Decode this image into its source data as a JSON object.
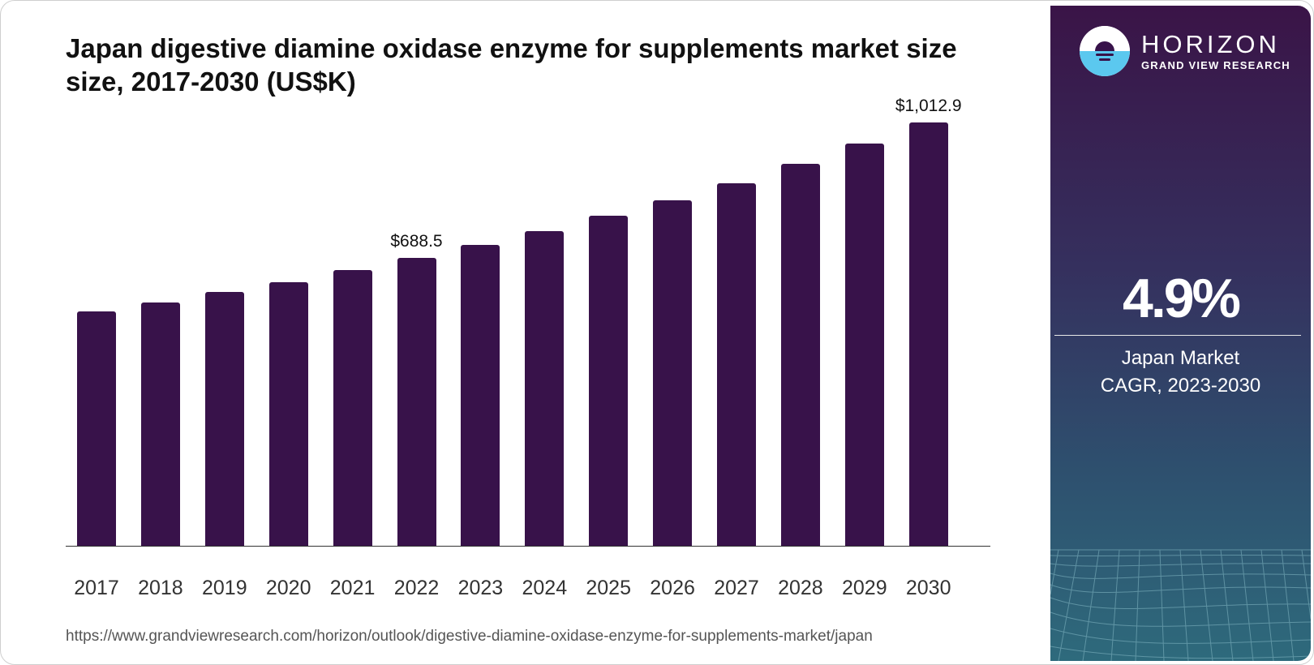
{
  "title": "Japan digestive diamine oxidase enzyme for supplements market size size, 2017-2030 (US$K)",
  "source_url": "https://www.grandviewresearch.com/horizon/outlook/digestive-diamine-oxidase-enzyme-for-supplements-market/japan",
  "brand": {
    "name": "HORIZON",
    "subtitle": "GRAND VIEW RESEARCH",
    "bar_color": "#38124a",
    "logo_top_color": "#ffffff",
    "logo_bottom_color": "#5bc8ef"
  },
  "sidebar": {
    "cagr_value": "4.9%",
    "label_line1": "Japan Market",
    "label_line2": "CAGR, 2023-2030"
  },
  "chart_data": {
    "type": "bar",
    "title": "Japan digestive diamine oxidase enzyme for supplements market size size, 2017-2030 (US$K)",
    "xlabel": "",
    "ylabel": "US$K",
    "categories": [
      "2017",
      "2018",
      "2019",
      "2020",
      "2021",
      "2022",
      "2023",
      "2024",
      "2025",
      "2026",
      "2027",
      "2028",
      "2029",
      "2030"
    ],
    "values": [
      561.3,
      582.7,
      607.9,
      631.2,
      660.3,
      688.5,
      720.6,
      753.6,
      790.5,
      827.4,
      868.2,
      914.8,
      963.3,
      1012.9
    ],
    "annotations": [
      {
        "category": "2022",
        "label": "$688.5"
      },
      {
        "category": "2030",
        "label": "$1,012.9"
      }
    ],
    "ylim": [
      0,
      1050
    ],
    "grid": false,
    "legend": "none"
  }
}
